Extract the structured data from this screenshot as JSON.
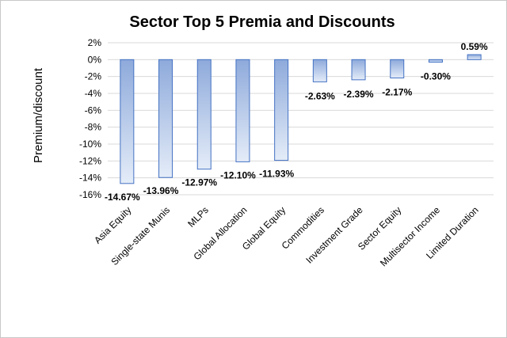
{
  "chart_data": {
    "type": "bar",
    "title": "Sector Top 5 Premia and Discounts",
    "xlabel": "",
    "ylabel": "Premium/discount",
    "ylim": [
      -16,
      2
    ],
    "yticks": [
      "2%",
      "0%",
      "-2%",
      "-4%",
      "-6%",
      "-8%",
      "-10%",
      "-12%",
      "-14%",
      "-16%"
    ],
    "grid": true,
    "categories": [
      "Asia Equity",
      "Single-state Munis",
      "MLPs",
      "Global Allocation",
      "Global Equity",
      "Commodities",
      "Investment Grade",
      "Sector Equity",
      "Multisector Income",
      "Limited Duration"
    ],
    "values": [
      -14.67,
      -13.96,
      -12.97,
      -12.1,
      -11.93,
      -2.63,
      -2.39,
      -2.17,
      -0.3,
      0.59
    ],
    "data_labels": [
      "-14.67%",
      "-13.96%",
      "-12.97%",
      "-12.10%",
      "-11.93%",
      "-2.63%",
      "-2.39%",
      "-2.17%",
      "-0.30%",
      "0.59%"
    ],
    "colors": {
      "bar_dark": "#8eaadb",
      "bar_light": "#e4ecf8",
      "bar_border": "#4472c4",
      "grid": "#d9d9d9"
    }
  }
}
